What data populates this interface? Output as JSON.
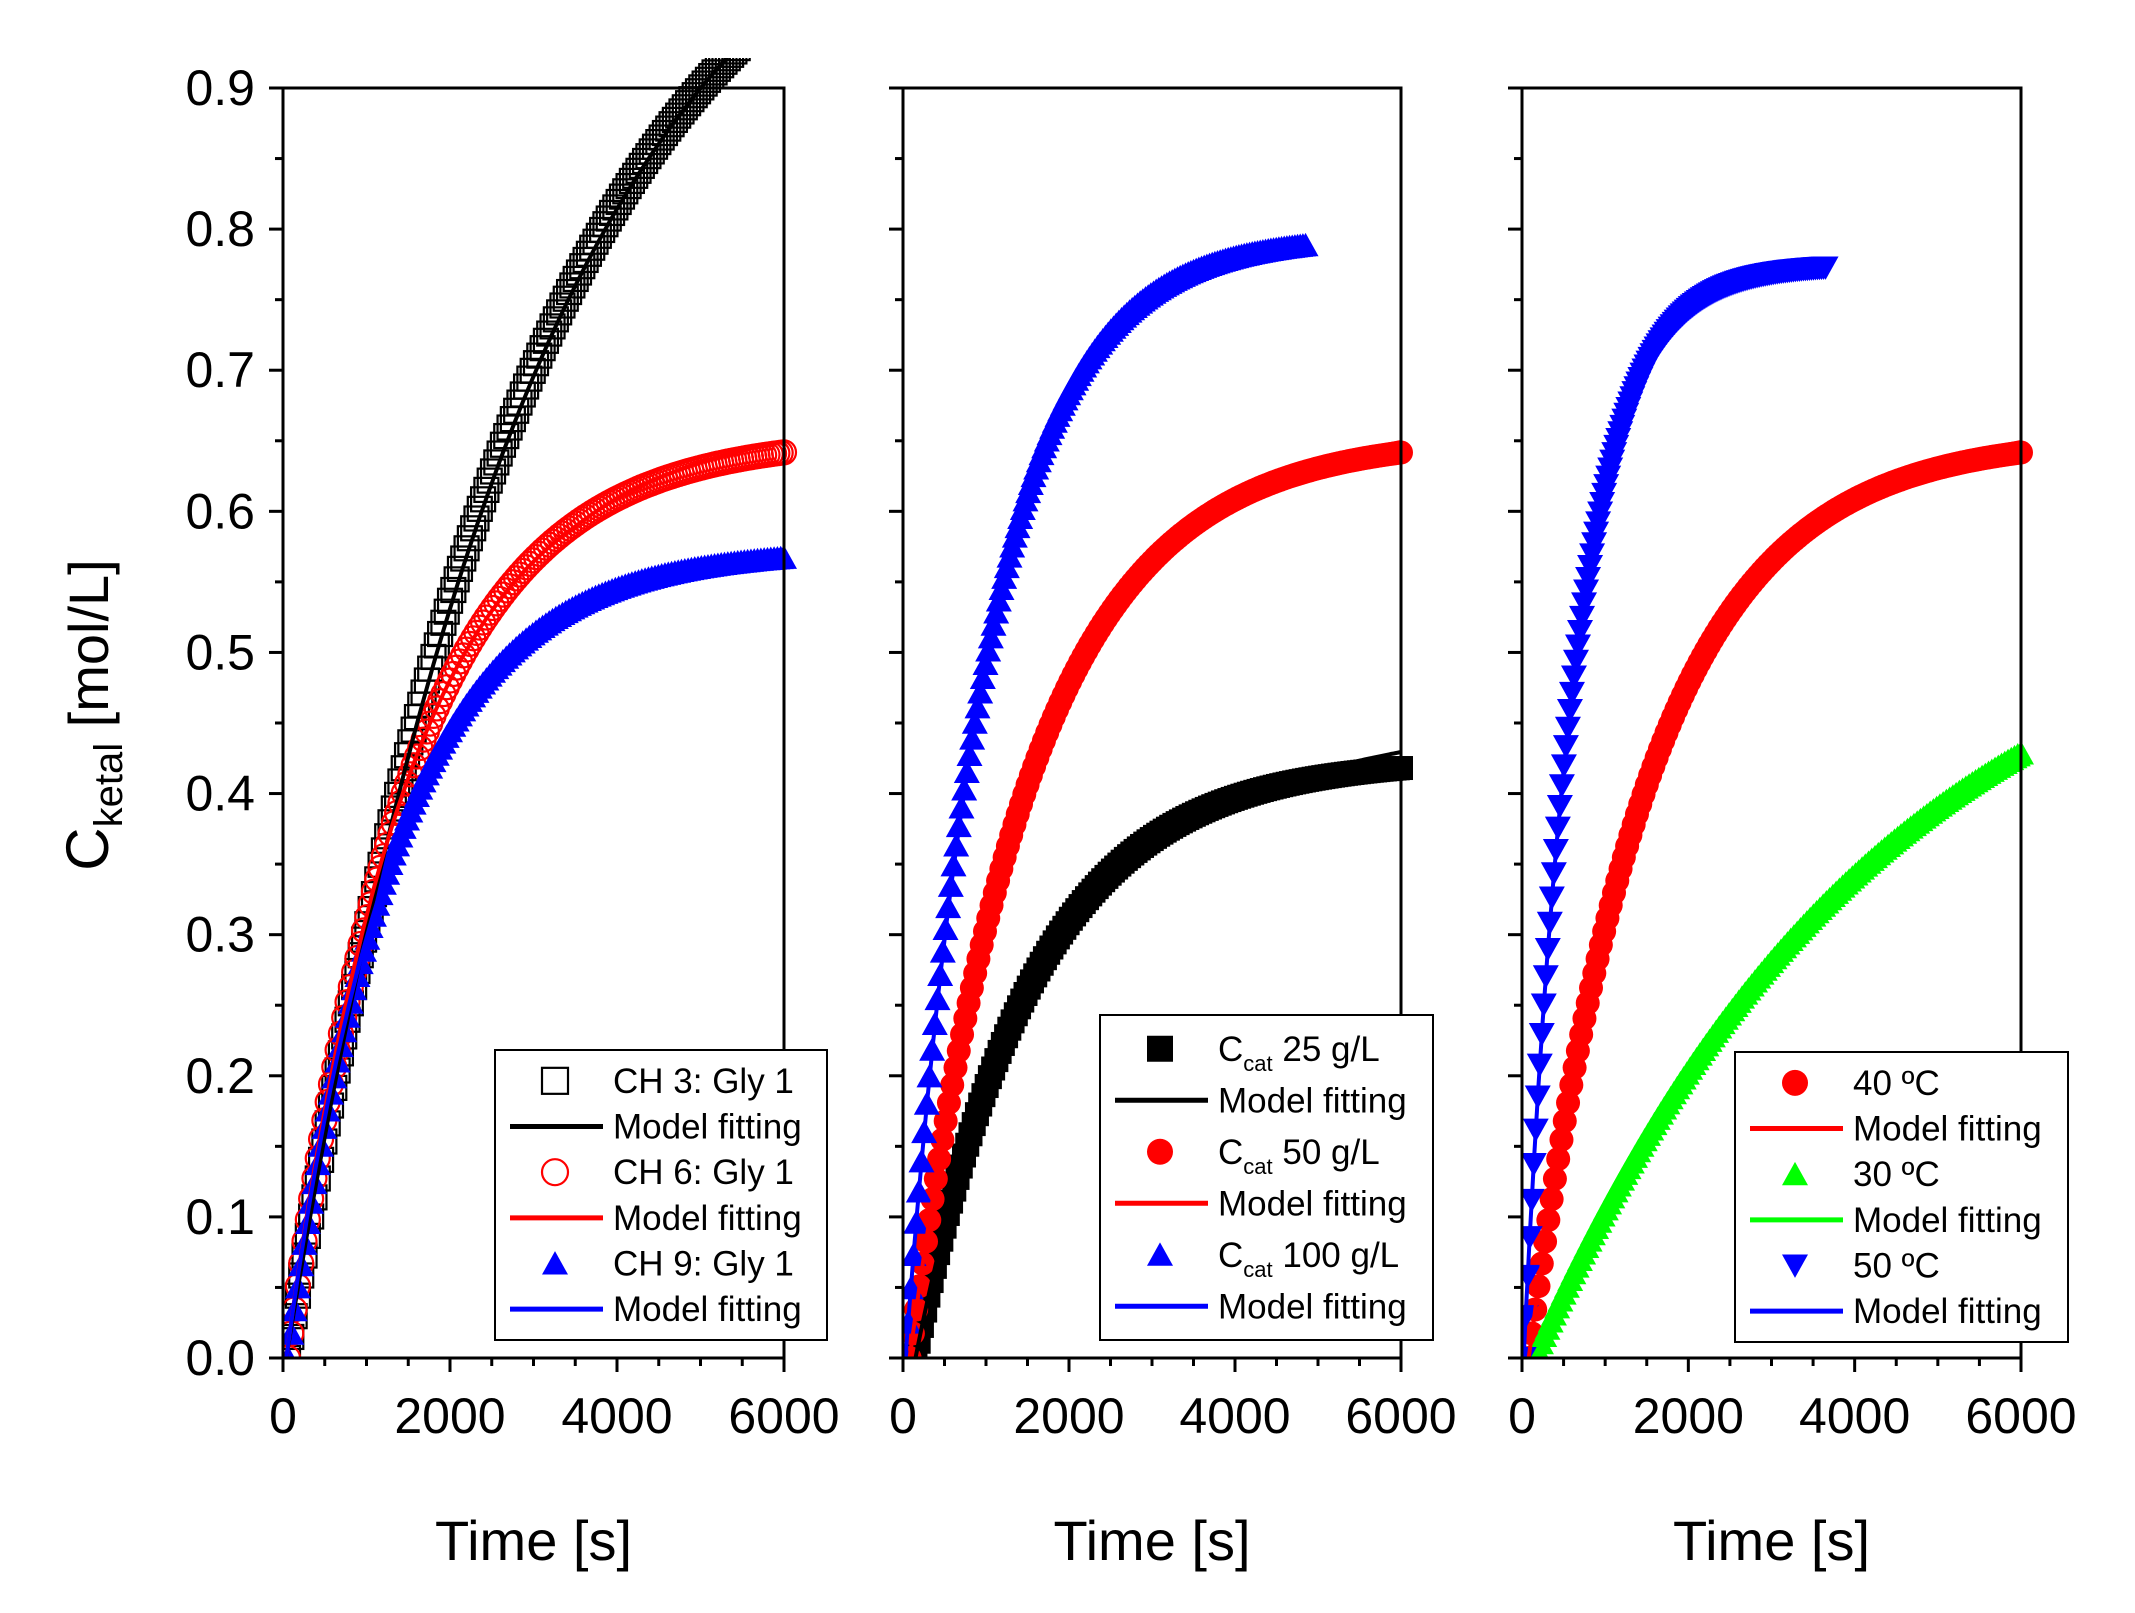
{
  "figure": {
    "ylabel_main": "C",
    "ylabel_sub": "ketal",
    "ylabel_unit": " [mol/L]"
  },
  "chart_data": [
    {
      "type": "scatter",
      "panel": "left",
      "xlabel": "Time [s]",
      "ylabel": "C_ketal [mol/L]",
      "xlim": [
        0,
        6000
      ],
      "ylim": [
        0,
        0.9
      ],
      "xticks": [
        "0",
        "2000",
        "4000",
        "6000"
      ],
      "yticks": [
        "0.0",
        "0.1",
        "0.2",
        "0.3",
        "0.4",
        "0.5",
        "0.6",
        "0.7",
        "0.8",
        "0.9"
      ],
      "legend_position": "bottom-right",
      "series": [
        {
          "name": "CH 3: Gly 1",
          "kind": "data",
          "marker": "open-square",
          "color": "#000000",
          "ceq": 1.1,
          "tau": 2900,
          "t0": 60,
          "tmax": 6000
        },
        {
          "name": "Model fitting",
          "kind": "model",
          "color": "#000000",
          "ceq": 1.12,
          "tau": 3050,
          "t0": 40,
          "tmax": 6000
        },
        {
          "name": "CH 6: Gly 1",
          "kind": "data",
          "marker": "open-circle",
          "color": "#ff0000",
          "ceq": 0.653,
          "tau": 1460,
          "t0": 60,
          "tmax": 6000
        },
        {
          "name": "Model fitting",
          "kind": "model",
          "color": "#ff0000",
          "ceq": 0.65,
          "tau": 1460,
          "t0": 40,
          "tmax": 6000,
          "drift": 4.2e-06
        },
        {
          "name": "CH 9: Gly 1",
          "kind": "data",
          "marker": "filled-triangle-up",
          "color": "#0000ff",
          "ceq": 0.573,
          "tau": 1300,
          "t0": 60,
          "tmax": 6000
        },
        {
          "name": "Model fitting",
          "kind": "model",
          "color": "#0000ff",
          "ceq": 0.57,
          "tau": 1300,
          "t0": 40,
          "tmax": 6000,
          "drift": 3.5e-06
        }
      ]
    },
    {
      "type": "scatter",
      "panel": "middle",
      "xlabel": "Time [s]",
      "ylabel": "C_ketal [mol/L]",
      "xlim": [
        0,
        6000
      ],
      "ylim": [
        0,
        0.9
      ],
      "xticks": [
        "0",
        "2000",
        "4000",
        "6000"
      ],
      "yticks": [],
      "legend_position": "bottom-right",
      "series": [
        {
          "name": "C",
          "name_sub": "cat",
          "name_rest": " 25 g/L",
          "kind": "data",
          "marker": "filled-square",
          "color": "#000000",
          "ceq": 0.425,
          "tau": 1420,
          "t0": 150,
          "tmax": 6000
        },
        {
          "name": "Model fitting",
          "kind": "model",
          "color": "#000000",
          "ceq": 0.42,
          "tau": 1420,
          "t0": 150,
          "tmax": 6000,
          "drift": 6.5e-06
        },
        {
          "name": "C",
          "name_sub": "cat",
          "name_rest": " 50 g/L",
          "kind": "data",
          "marker": "filled-circle",
          "color": "#ff0000",
          "ceq": 0.653,
          "tau": 1460,
          "t0": 80,
          "tmax": 6000
        },
        {
          "name": "Model fitting",
          "kind": "model",
          "color": "#ff0000",
          "ceq": 0.65,
          "tau": 1460,
          "t0": 80,
          "tmax": 6000,
          "drift": 4.2e-06
        },
        {
          "name": "C",
          "name_sub": "cat",
          "name_rest": " 100 g/L",
          "kind": "data",
          "marker": "filled-triangle-up",
          "color": "#0000ff",
          "ceq": 0.795,
          "tau": 1000,
          "t0": 30,
          "tmax": 4850
        },
        {
          "name": "Model fitting",
          "kind": "model",
          "color": "#0000ff",
          "ceq": 0.79,
          "tau": 1000,
          "t0": 30,
          "tmax": 4750
        }
      ]
    },
    {
      "type": "scatter",
      "panel": "right",
      "xlabel": "Time [s]",
      "ylabel": "C_ketal [mol/L]",
      "xlim": [
        0,
        6000
      ],
      "ylim": [
        0,
        0.9
      ],
      "xticks": [
        "0",
        "2000",
        "4000",
        "6000"
      ],
      "yticks": [],
      "legend_position": "bottom-right",
      "series": [
        {
          "name": "40 ºC",
          "kind": "data",
          "marker": "filled-circle",
          "color": "#ff0000",
          "ceq": 0.653,
          "tau": 1460,
          "t0": 80,
          "tmax": 6000
        },
        {
          "name": "Model fitting",
          "kind": "model",
          "color": "#ff0000",
          "ceq": 0.65,
          "tau": 1460,
          "t0": 80,
          "tmax": 6000,
          "drift": 4.2e-06
        },
        {
          "name": "30 ºC",
          "kind": "data",
          "marker": "filled-triangle-up",
          "color": "#00ff00",
          "ceq": 0.57,
          "tau": 4200,
          "t0": 150,
          "tmax": 6000
        },
        {
          "name": "Model fitting",
          "kind": "model",
          "color": "#00ff00",
          "ceq": 0.57,
          "tau": 4200,
          "t0": 150,
          "tmax": 6000
        },
        {
          "name": "50 ºC",
          "kind": "data",
          "marker": "filled-triangle-down",
          "color": "#0000ff",
          "ceq": 0.775,
          "tau": 620,
          "t0": 20,
          "tmax": 3650
        },
        {
          "name": "Model fitting",
          "kind": "model",
          "color": "#0000ff",
          "ceq": 0.772,
          "tau": 620,
          "t0": 20,
          "tmax": 3550
        }
      ]
    }
  ]
}
